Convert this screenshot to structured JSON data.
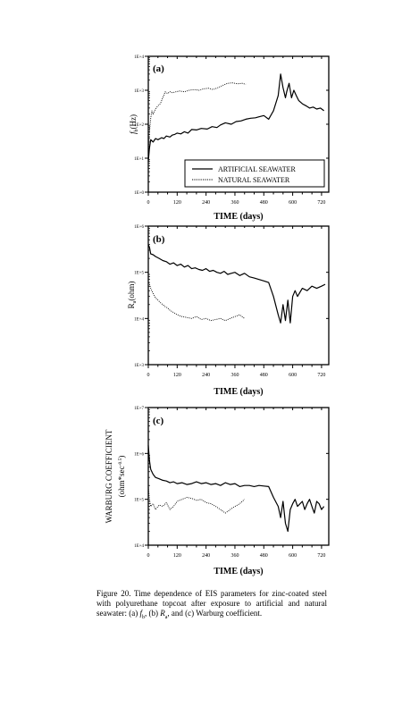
{
  "chart_data": [
    {
      "type": "line",
      "panel_label": "(a)",
      "xlabel": "TIME (days)",
      "ylabel_main": "f",
      "ylabel_sub": "b",
      "ylabel_unit": "(Hz)",
      "yscale": "log",
      "xlim": [
        0,
        750
      ],
      "ylim_exp": [
        0,
        4
      ],
      "x_ticks": [
        "0",
        "120",
        "240",
        "360",
        "480",
        "600",
        "720"
      ],
      "y_ticks": [
        "1E+0",
        "1E+1",
        "1E+2",
        "1E+3",
        "1E+4"
      ],
      "legend": {
        "placement": "bottom-right",
        "entries": [
          "ARTIFICIAL SEAWATER",
          "NATURAL SEAWATER"
        ]
      },
      "series": [
        {
          "name": "ARTIFICIAL SEAWATER",
          "style": "solid",
          "x": [
            0,
            5,
            10,
            20,
            30,
            40,
            55,
            65,
            75,
            90,
            100,
            110,
            120,
            135,
            150,
            165,
            180,
            200,
            220,
            245,
            265,
            285,
            300,
            320,
            345,
            365,
            385,
            405,
            425,
            445,
            460,
            480,
            500,
            520,
            540,
            550,
            560,
            570,
            575,
            585,
            595,
            605,
            615,
            625,
            640,
            655,
            670,
            685,
            700,
            715,
            730
          ],
          "y": [
            8,
            20,
            35,
            30,
            38,
            35,
            40,
            38,
            45,
            42,
            48,
            50,
            55,
            52,
            60,
            55,
            70,
            68,
            75,
            72,
            85,
            80,
            95,
            110,
            100,
            120,
            125,
            140,
            150,
            155,
            165,
            180,
            140,
            250,
            700,
            3000,
            1200,
            600,
            900,
            1600,
            600,
            1000,
            700,
            500,
            400,
            350,
            300,
            320,
            280,
            300,
            250
          ]
        },
        {
          "name": "NATURAL SEAWATER",
          "style": "dotted",
          "x": [
            0,
            5,
            10,
            15,
            20,
            30,
            40,
            50,
            60,
            70,
            80,
            90,
            100,
            115,
            130,
            150,
            170,
            190,
            210,
            230,
            250,
            270,
            290,
            310,
            330,
            350,
            370,
            390,
            405
          ],
          "y": [
            10,
            60,
            150,
            250,
            200,
            280,
            350,
            400,
            600,
            900,
            800,
            900,
            850,
            900,
            950,
            900,
            1000,
            1050,
            1000,
            1100,
            1150,
            1050,
            1200,
            1400,
            1600,
            1650,
            1550,
            1600,
            1500
          ]
        }
      ]
    },
    {
      "type": "line",
      "panel_label": "(b)",
      "xlabel": "TIME (days)",
      "ylabel_main": "R",
      "ylabel_sub": "a",
      "ylabel_unit": "(ohm)",
      "yscale": "log",
      "xlim": [
        0,
        750
      ],
      "ylim_exp": [
        3,
        6
      ],
      "x_ticks": [
        "0",
        "120",
        "240",
        "360",
        "480",
        "600",
        "720"
      ],
      "y_ticks": [
        "1E+3",
        "1E+4",
        "1E+5",
        "1E+6"
      ],
      "series": [
        {
          "name": "ARTIFICIAL SEAWATER",
          "style": "solid",
          "x": [
            0,
            5,
            10,
            20,
            30,
            45,
            60,
            75,
            90,
            105,
            120,
            135,
            150,
            165,
            180,
            195,
            210,
            225,
            240,
            255,
            270,
            285,
            300,
            315,
            330,
            345,
            360,
            380,
            400,
            420,
            440,
            460,
            480,
            500,
            520,
            540,
            550,
            560,
            570,
            580,
            590,
            600,
            610,
            620,
            640,
            660,
            680,
            700,
            720,
            735
          ],
          "y": [
            400000,
            350000,
            250000,
            240000,
            220000,
            200000,
            180000,
            170000,
            150000,
            160000,
            140000,
            150000,
            130000,
            140000,
            120000,
            125000,
            115000,
            110000,
            120000,
            105000,
            110000,
            100000,
            95000,
            105000,
            90000,
            95000,
            100000,
            85000,
            95000,
            80000,
            75000,
            70000,
            65000,
            60000,
            30000,
            12000,
            8000,
            20000,
            9000,
            25000,
            8000,
            30000,
            40000,
            30000,
            45000,
            40000,
            50000,
            45000,
            50000,
            55000
          ]
        },
        {
          "name": "NATURAL SEAWATER",
          "style": "dotted",
          "x": [
            0,
            5,
            10,
            20,
            30,
            40,
            50,
            60,
            70,
            80,
            90,
            100,
            110,
            120,
            140,
            160,
            180,
            200,
            220,
            240,
            260,
            280,
            300,
            320,
            340,
            360,
            380,
            400
          ],
          "y": [
            60000,
            55000,
            45000,
            35000,
            28000,
            25000,
            22000,
            20000,
            18000,
            17000,
            15000,
            14000,
            13000,
            12000,
            11000,
            10500,
            10000,
            11000,
            9500,
            10000,
            9000,
            9500,
            10000,
            9000,
            10000,
            11000,
            12000,
            10000
          ]
        }
      ]
    },
    {
      "type": "line",
      "panel_label": "(c)",
      "xlabel": "TIME (days)",
      "ylabel_main": "WARBURG COEFFICIENT",
      "ylabel_unit": "(ohm*sec",
      "ylabel_exp": "-0.5",
      "yscale": "log",
      "xlim": [
        0,
        750
      ],
      "ylim_exp": [
        4,
        7
      ],
      "x_ticks": [
        "0",
        "120",
        "240",
        "360",
        "480",
        "600",
        "720"
      ],
      "y_ticks": [
        "1E+4",
        "1E+5",
        "1E+6",
        "1E+7"
      ],
      "series": [
        {
          "name": "ARTIFICIAL SEAWATER",
          "style": "solid",
          "x": [
            0,
            5,
            10,
            20,
            30,
            45,
            60,
            75,
            90,
            105,
            120,
            140,
            160,
            180,
            200,
            220,
            240,
            260,
            280,
            300,
            320,
            340,
            360,
            380,
            400,
            420,
            440,
            460,
            480,
            500,
            520,
            540,
            550,
            560,
            570,
            580,
            590,
            600,
            610,
            620,
            640,
            650,
            660,
            670,
            680,
            690,
            700,
            710,
            720,
            730
          ],
          "y": [
            1500000,
            700000,
            450000,
            350000,
            300000,
            280000,
            260000,
            250000,
            230000,
            240000,
            220000,
            230000,
            210000,
            220000,
            240000,
            220000,
            230000,
            210000,
            220000,
            200000,
            230000,
            210000,
            220000,
            190000,
            200000,
            200000,
            190000,
            200000,
            195000,
            190000,
            110000,
            70000,
            40000,
            90000,
            30000,
            20000,
            60000,
            80000,
            100000,
            70000,
            90000,
            60000,
            80000,
            100000,
            70000,
            50000,
            90000,
            80000,
            60000,
            70000
          ]
        },
        {
          "name": "NATURAL SEAWATER",
          "style": "dotted",
          "x": [
            0,
            5,
            10,
            20,
            30,
            45,
            60,
            75,
            90,
            105,
            120,
            140,
            160,
            180,
            200,
            220,
            240,
            260,
            280,
            300,
            320,
            340,
            360,
            380,
            400
          ],
          "y": [
            200000,
            100000,
            70000,
            80000,
            60000,
            75000,
            70000,
            85000,
            60000,
            70000,
            90000,
            100000,
            110000,
            105000,
            95000,
            100000,
            85000,
            80000,
            70000,
            60000,
            50000,
            60000,
            70000,
            80000,
            100000
          ]
        }
      ]
    }
  ],
  "caption": {
    "prefix": "Figure 20.  Time dependence of EIS parameters for zinc-coated steel with polyurethane topcoat after exposure to artificial and natural seawater: (a) ",
    "fb_main": "f",
    "fb_sub": "b",
    "mid": ", (b) ",
    "ra_main": "R",
    "ra_sub": "a",
    "suffix": ", and (c) Warburg coefficient."
  }
}
